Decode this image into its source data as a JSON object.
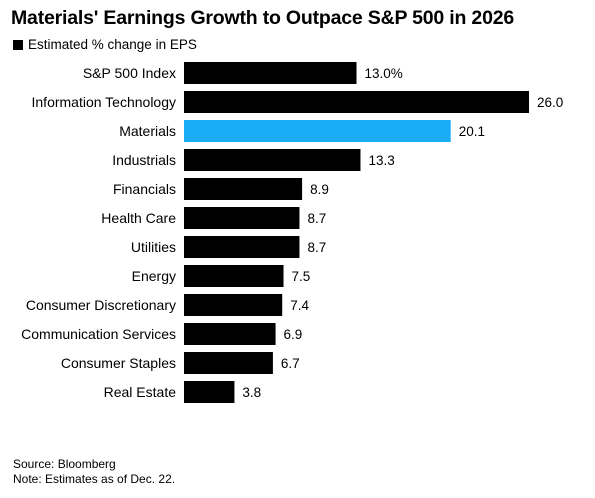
{
  "chart_data": {
    "type": "bar",
    "orientation": "horizontal",
    "title": "Materials' Earnings Growth to Outpace S&P 500 in 2026",
    "legend": [
      {
        "name": "Estimated % change in EPS",
        "color": "#000000"
      }
    ],
    "legend_position": "top-left",
    "categories": [
      "S&P 500 Index",
      "Information Technology",
      "Materials",
      "Industrials",
      "Financials",
      "Health Care",
      "Utilities",
      "Energy",
      "Consumer Discretionary",
      "Communication Services",
      "Consumer Staples",
      "Real Estate"
    ],
    "series": [
      {
        "name": "Estimated % change in EPS",
        "values": [
          13.0,
          26.0,
          20.1,
          13.3,
          8.9,
          8.7,
          8.7,
          7.5,
          7.4,
          6.9,
          6.7,
          3.8
        ]
      }
    ],
    "value_labels": [
      "13.0%",
      "26.0",
      "20.1",
      "13.3",
      "8.9",
      "8.7",
      "8.7",
      "7.5",
      "7.4",
      "6.9",
      "6.7",
      "3.8"
    ],
    "highlight_category": "Materials",
    "colors": {
      "default": "#000000",
      "highlight": "#1aadf5"
    },
    "xlim": [
      0,
      26.0
    ],
    "grid": false
  },
  "footer": {
    "source": "Source: Bloomberg",
    "note": "Note: Estimates as of Dec. 22."
  }
}
